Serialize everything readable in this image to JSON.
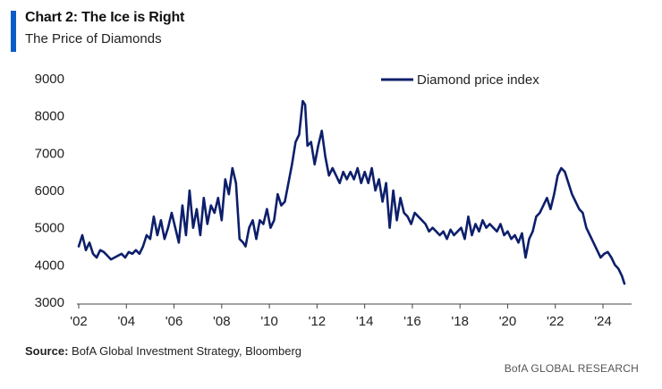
{
  "header": {
    "title": "Chart 2: The Ice is Right",
    "subtitle": "The Price of Diamonds"
  },
  "footer": {
    "source_label": "Source:",
    "source_text": "BofA Global Investment Strategy, Bloomberg",
    "brand": "BofA GLOBAL RESEARCH"
  },
  "colors": {
    "accent": "#0b5cc9",
    "series": "#0d1f6b"
  },
  "chart_data": {
    "type": "line",
    "title": "Chart 2: The Ice is Right",
    "subtitle": "The Price of Diamonds",
    "xlabel": "",
    "ylabel": "",
    "xlim": [
      2002,
      2025.2
    ],
    "ylim": [
      3000,
      9000
    ],
    "yticks": [
      3000,
      4000,
      5000,
      6000,
      7000,
      8000,
      9000
    ],
    "xticks": [
      2002,
      2004,
      2006,
      2008,
      2010,
      2012,
      2014,
      2016,
      2018,
      2020,
      2022,
      2024
    ],
    "xtick_labels": [
      "'02",
      "'04",
      "'06",
      "'08",
      "'10",
      "'12",
      "'14",
      "'16",
      "'18",
      "'20",
      "'22",
      "'24"
    ],
    "grid": false,
    "legend_position": "top-right",
    "series": [
      {
        "name": "Diamond price index",
        "x": [
          2002.0,
          2002.15,
          2002.3,
          2002.45,
          2002.6,
          2002.75,
          2002.9,
          2003.05,
          2003.2,
          2003.35,
          2003.5,
          2003.65,
          2003.8,
          2003.95,
          2004.1,
          2004.25,
          2004.4,
          2004.55,
          2004.7,
          2004.85,
          2005.0,
          2005.15,
          2005.3,
          2005.45,
          2005.6,
          2005.75,
          2005.9,
          2006.05,
          2006.2,
          2006.35,
          2006.5,
          2006.65,
          2006.8,
          2006.95,
          2007.1,
          2007.25,
          2007.4,
          2007.55,
          2007.7,
          2007.85,
          2008.0,
          2008.15,
          2008.3,
          2008.45,
          2008.6,
          2008.75,
          2008.9,
          2009.0,
          2009.15,
          2009.3,
          2009.45,
          2009.6,
          2009.75,
          2009.9,
          2010.05,
          2010.2,
          2010.35,
          2010.5,
          2010.65,
          2010.8,
          2010.95,
          2011.1,
          2011.25,
          2011.4,
          2011.5,
          2011.6,
          2011.75,
          2011.9,
          2012.05,
          2012.2,
          2012.35,
          2012.5,
          2012.65,
          2012.8,
          2012.95,
          2013.1,
          2013.25,
          2013.4,
          2013.55,
          2013.7,
          2013.85,
          2014.0,
          2014.15,
          2014.3,
          2014.45,
          2014.6,
          2014.75,
          2014.9,
          2015.05,
          2015.2,
          2015.35,
          2015.5,
          2015.65,
          2015.8,
          2015.95,
          2016.1,
          2016.25,
          2016.4,
          2016.55,
          2016.7,
          2016.85,
          2017.0,
          2017.15,
          2017.3,
          2017.45,
          2017.6,
          2017.75,
          2017.9,
          2018.05,
          2018.2,
          2018.35,
          2018.5,
          2018.65,
          2018.8,
          2018.95,
          2019.1,
          2019.25,
          2019.4,
          2019.55,
          2019.7,
          2019.85,
          2020.0,
          2020.15,
          2020.3,
          2020.45,
          2020.6,
          2020.75,
          2020.9,
          2021.05,
          2021.2,
          2021.35,
          2021.5,
          2021.65,
          2021.8,
          2021.95,
          2022.1,
          2022.25,
          2022.4,
          2022.55,
          2022.7,
          2022.85,
          2023.0,
          2023.15,
          2023.3,
          2023.45,
          2023.6,
          2023.75,
          2023.9,
          2024.05,
          2024.2,
          2024.35,
          2024.5,
          2024.65,
          2024.8,
          2024.9
        ],
        "values": [
          4500,
          4800,
          4400,
          4600,
          4300,
          4200,
          4400,
          4350,
          4250,
          4150,
          4200,
          4250,
          4300,
          4200,
          4350,
          4300,
          4400,
          4300,
          4500,
          4800,
          4700,
          5300,
          4800,
          5200,
          4700,
          5000,
          5400,
          5000,
          4600,
          5600,
          4800,
          6000,
          5000,
          5500,
          4800,
          5800,
          5100,
          5600,
          5400,
          5800,
          5200,
          6300,
          5900,
          6600,
          6200,
          4700,
          4600,
          4500,
          5000,
          5200,
          4700,
          5200,
          5100,
          5500,
          5000,
          5200,
          5900,
          5600,
          5700,
          6200,
          6700,
          7300,
          7500,
          8400,
          8300,
          7200,
          7300,
          6700,
          7200,
          7600,
          6900,
          6400,
          6600,
          6400,
          6200,
          6500,
          6300,
          6500,
          6300,
          6600,
          6200,
          6500,
          6200,
          6600,
          6000,
          6300,
          5700,
          6200,
          5000,
          6000,
          5200,
          5800,
          5400,
          5300,
          5100,
          5400,
          5300,
          5200,
          5100,
          4900,
          5000,
          4900,
          4800,
          4900,
          4700,
          4950,
          4800,
          4900,
          5000,
          4700,
          5300,
          4800,
          5100,
          4900,
          5200,
          5000,
          5100,
          5000,
          4900,
          5100,
          4800,
          4900,
          4700,
          4800,
          4600,
          4850,
          4200,
          4700,
          4900,
          5300,
          5400,
          5600,
          5800,
          5500,
          5900,
          6400,
          6600,
          6500,
          6200,
          5900,
          5700,
          5500,
          5400,
          5000,
          4800,
          4600,
          4400,
          4200,
          4300,
          4350,
          4200,
          4000,
          3900,
          3700,
          3500
        ]
      }
    ]
  }
}
